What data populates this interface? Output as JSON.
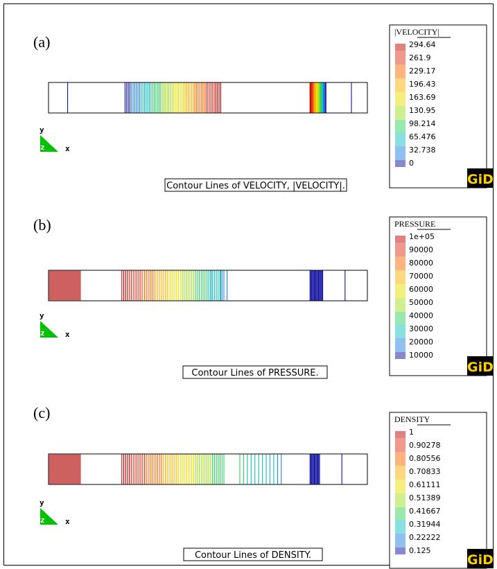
{
  "panels": [
    {
      "label": "(a)",
      "caption": "Contour Lines of VELOCITY, |VELOCITY|.",
      "legend_title": "|VELOCITY|",
      "legend_values": [
        "294.64",
        "261.9",
        "229.17",
        "196.43",
        "163.69",
        "130.95",
        "98.214",
        "65.476",
        "32.738",
        "0"
      ]
    },
    {
      "label": "(b)",
      "caption": "Contour Lines of PRESSURE.",
      "legend_title": "PRESSURE",
      "legend_values": [
        "1e+05",
        "90000",
        "80000",
        "70000",
        "60000",
        "50000",
        "40000",
        "30000",
        "20000",
        "10000"
      ]
    },
    {
      "label": "(c)",
      "caption": "Contour Lines of DENSITY.",
      "legend_title": "DENSITY",
      "legend_values": [
        "1",
        "0.90278",
        "0.80556",
        "0.70833",
        "0.61111",
        "0.51389",
        "0.41667",
        "0.31944",
        "0.22222",
        "0.125"
      ]
    }
  ],
  "axis": {
    "y": "y",
    "z": "z",
    "x": "x"
  },
  "logo": "GiD",
  "colors": {
    "scale": [
      "#c00000",
      "#e0301c",
      "#ff6a00",
      "#ffb000",
      "#e8e000",
      "#a0e020",
      "#30d060",
      "#10c0c0",
      "#2080e0",
      "#1010a0"
    ],
    "triad": "#00c000",
    "logo_bg": "#ffd000"
  }
}
